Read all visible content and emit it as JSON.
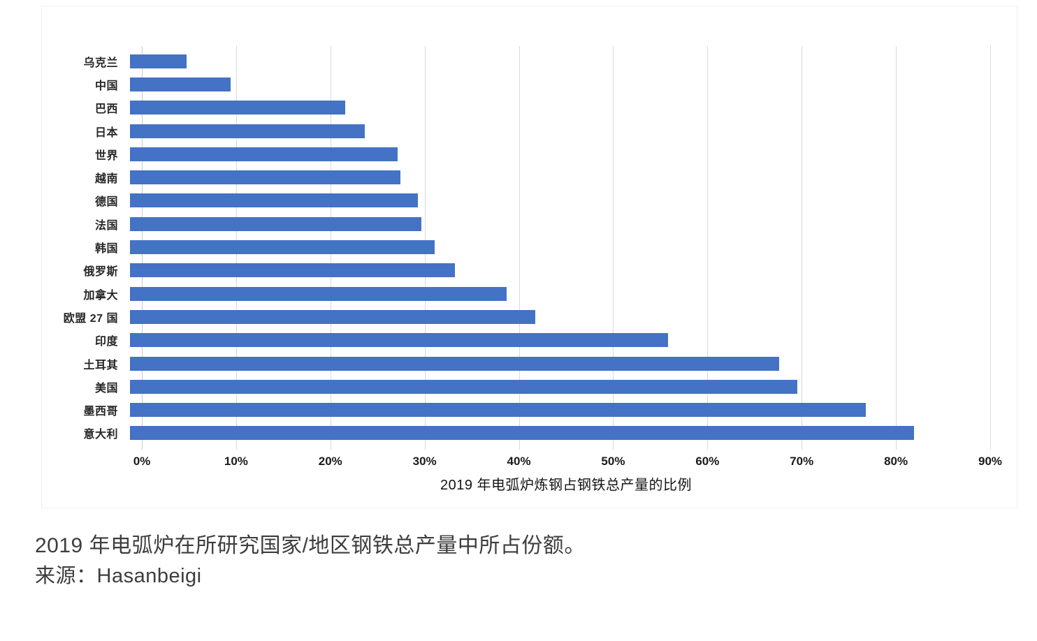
{
  "chart_data": {
    "type": "bar",
    "orientation": "horizontal",
    "categories": [
      "乌克兰",
      "中国",
      "巴西",
      "日本",
      "世界",
      "越南",
      "德国",
      "法国",
      "韩国",
      "俄罗斯",
      "加拿大",
      "欧盟 27 国",
      "印度",
      "土耳其",
      "美国",
      "墨西哥",
      "意大利"
    ],
    "values": [
      5.9,
      10.5,
      22.5,
      24.6,
      28.0,
      28.3,
      30.1,
      30.5,
      31.9,
      34.0,
      39.4,
      42.4,
      56.3,
      67.9,
      69.8,
      77.0,
      82.0
    ],
    "x_ticks": [
      "0%",
      "10%",
      "20%",
      "30%",
      "40%",
      "50%",
      "60%",
      "70%",
      "80%",
      "90%"
    ],
    "x_tick_values": [
      0,
      10,
      20,
      30,
      40,
      50,
      60,
      70,
      80,
      90
    ],
    "xlim": [
      0,
      90
    ],
    "xlabel": "2019 年电弧炉炼钢占钢铁总产量的比例",
    "title": "",
    "grid": true,
    "legend_position": "none",
    "bar_color": "#4472C4",
    "gridline_color": "#D9D9D9"
  },
  "caption": {
    "line1": "2019 年电弧炉在所研究国家/地区钢铁总产量中所占份额。",
    "line2": "来源：Hasanbeigi"
  }
}
